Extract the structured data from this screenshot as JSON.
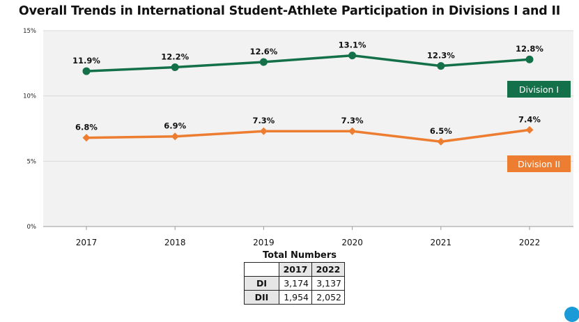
{
  "chart_data": {
    "type": "line",
    "title": "Overall Trends in International Student-Athlete Participation in Divisions I and II",
    "categories": [
      "2017",
      "2018",
      "2019",
      "2020",
      "2021",
      "2022"
    ],
    "ylim": [
      0,
      15
    ],
    "yticks": [
      "0%",
      "5%",
      "10%",
      "15%"
    ],
    "grid": true,
    "series": [
      {
        "name": "Division I",
        "values": [
          11.9,
          12.2,
          12.6,
          13.1,
          12.3,
          12.8
        ],
        "labels": [
          "11.9%",
          "12.2%",
          "12.6%",
          "13.1%",
          "12.3%",
          "12.8%"
        ],
        "color": "#137049",
        "marker": "circle"
      },
      {
        "name": "Division II",
        "values": [
          6.8,
          6.9,
          7.3,
          7.3,
          6.5,
          7.4
        ],
        "labels": [
          "6.8%",
          "6.9%",
          "7.3%",
          "7.3%",
          "6.5%",
          "7.4%"
        ],
        "color": "#ed7d31",
        "marker": "diamond"
      }
    ]
  },
  "table": {
    "title": "Total Numbers",
    "columns": [
      "2017",
      "2022"
    ],
    "rows": [
      {
        "label": "DI",
        "values": [
          "3,174",
          "3,137"
        ]
      },
      {
        "label": "DII",
        "values": [
          "1,954",
          "2,052"
        ]
      }
    ]
  }
}
